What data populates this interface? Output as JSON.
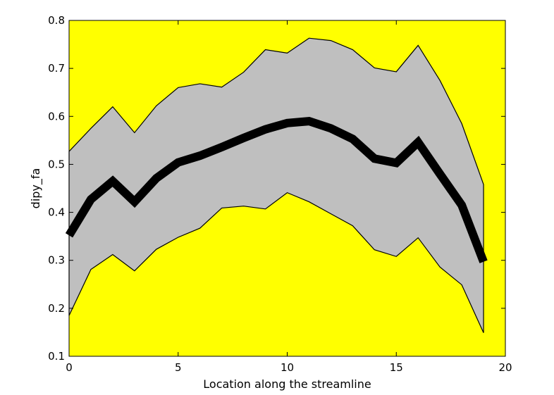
{
  "chart_data": {
    "type": "area",
    "title": "",
    "xlabel": "Location along the streamline",
    "ylabel": "dipy_fa",
    "xlim": [
      0,
      20
    ],
    "ylim": [
      0.1,
      0.8
    ],
    "xticks": [
      "0",
      "5",
      "10",
      "15",
      "20"
    ],
    "yticks": [
      "0.1",
      "0.2",
      "0.3",
      "0.4",
      "0.5",
      "0.6",
      "0.7",
      "0.8"
    ],
    "grid": false,
    "background_color": "#ffff00",
    "band_color": "#bfbfbf",
    "line_color": "#000000",
    "x": [
      0,
      1,
      2,
      3,
      4,
      5,
      6,
      7,
      8,
      9,
      10,
      11,
      12,
      13,
      14,
      15,
      16,
      17,
      18,
      19
    ],
    "series": [
      {
        "role": "mean",
        "values": [
          0.352,
          0.427,
          0.465,
          0.422,
          0.471,
          0.504,
          0.518,
          0.536,
          0.555,
          0.573,
          0.586,
          0.59,
          0.575,
          0.553,
          0.512,
          0.503,
          0.546,
          0.48,
          0.415,
          0.297
        ]
      },
      {
        "role": "upper",
        "values": [
          0.527,
          0.575,
          0.62,
          0.566,
          0.622,
          0.66,
          0.668,
          0.661,
          0.692,
          0.739,
          0.732,
          0.763,
          0.758,
          0.739,
          0.701,
          0.693,
          0.748,
          0.675,
          0.585,
          0.458
        ]
      },
      {
        "role": "lower",
        "values": [
          0.185,
          0.281,
          0.312,
          0.278,
          0.323,
          0.348,
          0.367,
          0.409,
          0.413,
          0.407,
          0.441,
          0.422,
          0.397,
          0.372,
          0.322,
          0.308,
          0.347,
          0.286,
          0.249,
          0.149
        ]
      }
    ]
  }
}
